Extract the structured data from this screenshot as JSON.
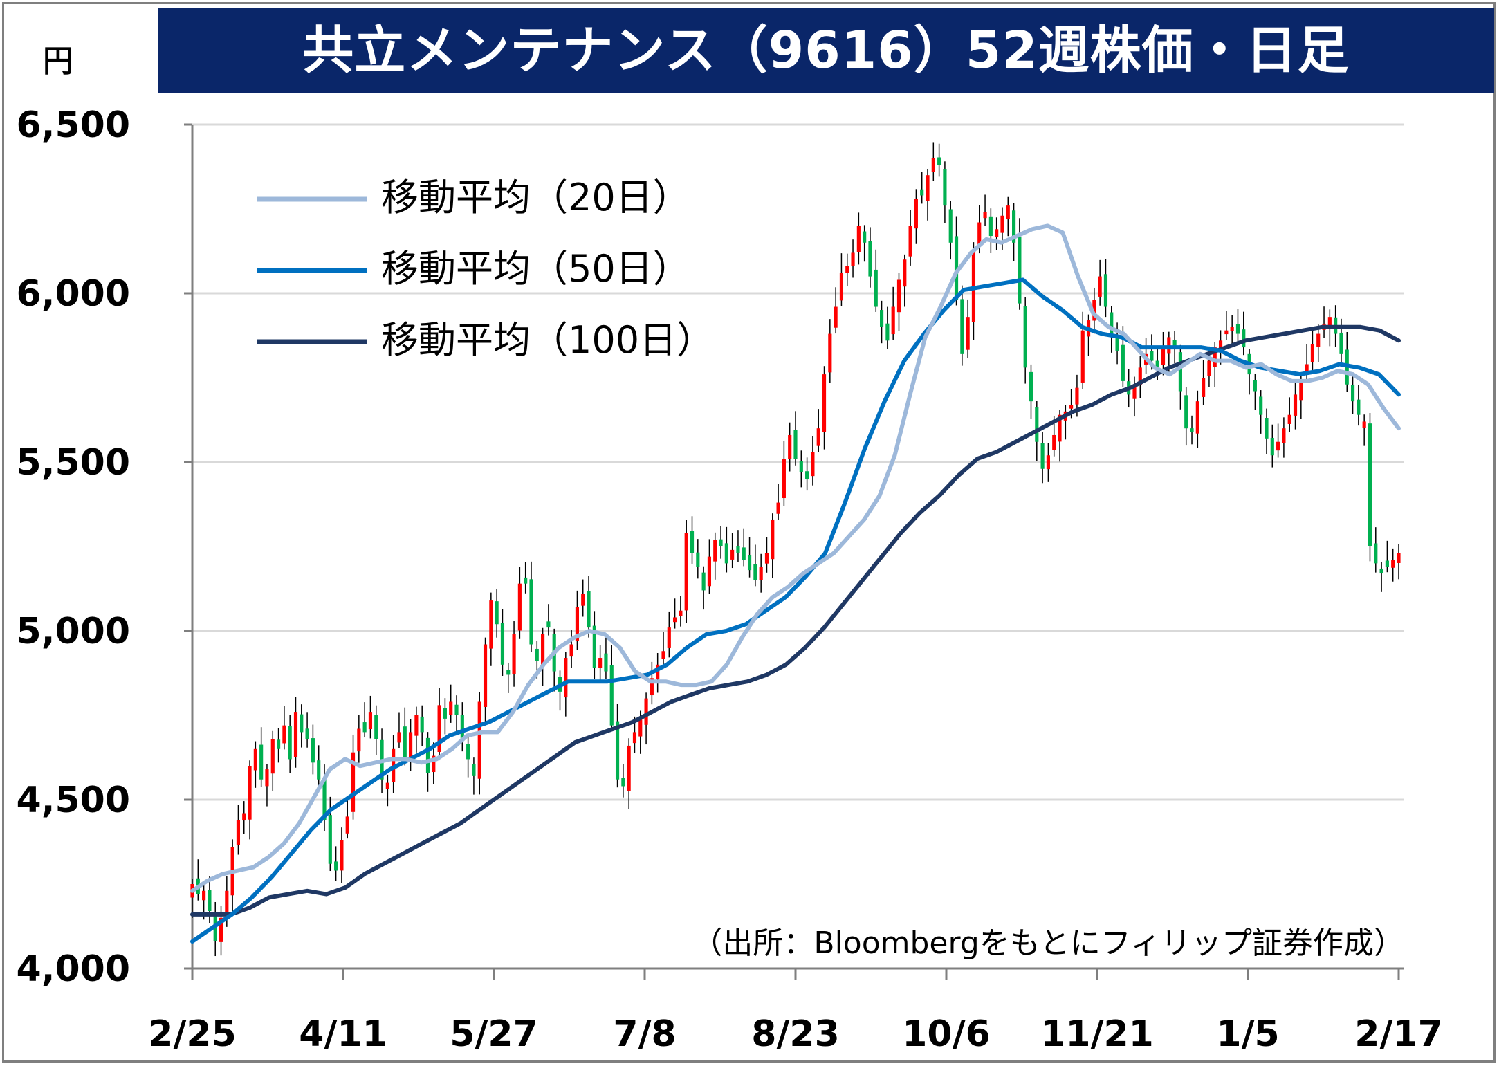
{
  "chart_data": {
    "type": "candlestick",
    "title": "共立メンテナンス（9616）52週株価・日足",
    "unit": "円",
    "ylim": [
      4000,
      6500
    ],
    "yticks": [
      4000,
      4500,
      5000,
      5500,
      6000,
      6500
    ],
    "ytick_labels": [
      "4,000",
      "4,500",
      "5,000",
      "5,500",
      "6,000",
      "6,500"
    ],
    "xtick_labels": [
      "2/25",
      "4/11",
      "5/27",
      "7/8",
      "8/23",
      "10/6",
      "11/21",
      "1/5",
      "2/17"
    ],
    "grid": true,
    "legend_position": "top-left",
    "source": "（出所：Bloombergをもとにフィリップ証券作成）",
    "colors": {
      "up": "#ff0000",
      "down": "#00b050",
      "ma20": "#9db8da",
      "ma50": "#0070c0",
      "ma100": "#1f3864",
      "title_bg": "#0a2669"
    },
    "series_names": [
      "移動平均（20日）",
      "移動平均（50日）",
      "移動平均（100日）"
    ],
    "candles_close": [
      4250,
      4220,
      4230,
      4170,
      4080,
      4150,
      4230,
      4360,
      4440,
      4460,
      4600,
      4650,
      4560,
      4590,
      4680,
      4650,
      4720,
      4620,
      4760,
      4700,
      4680,
      4610,
      4560,
      4440,
      4310,
      4290,
      4380,
      4450,
      4640,
      4710,
      4700,
      4760,
      4680,
      4560,
      4550,
      4650,
      4700,
      4620,
      4700,
      4750,
      4700,
      4580,
      4630,
      4780,
      4740,
      4790,
      4750,
      4680,
      4620,
      4570,
      4790,
      4960,
      5090,
      5020,
      4900,
      4870,
      4990,
      5140,
      5140,
      4960,
      4910,
      4990,
      5010,
      4880,
      4820,
      4920,
      4960,
      5070,
      5110,
      5010,
      4890,
      4920,
      4880,
      4720,
      4560,
      4540,
      4660,
      4700,
      4740,
      4800,
      4860,
      4900,
      4940,
      5010,
      5040,
      5060,
      5290,
      5230,
      5190,
      5120,
      5220,
      5270,
      5250,
      5200,
      5240,
      5230,
      5210,
      5180,
      5150,
      5190,
      5230,
      5330,
      5380,
      5510,
      5580,
      5510,
      5470,
      5450,
      5530,
      5600,
      5760,
      5880,
      5960,
      6060,
      6080,
      6120,
      6200,
      6150,
      6050,
      5960,
      5900,
      5860,
      5960,
      6040,
      6100,
      6200,
      6280,
      6290,
      6350,
      6400,
      6380,
      6260,
      6150,
      5980,
      5820,
      5930,
      6130,
      6210,
      6240,
      6170,
      6190,
      6230,
      6260,
      6150,
      5970,
      5780,
      5680,
      5560,
      5480,
      5520,
      5580,
      5640,
      5650,
      5670,
      5720,
      5890,
      5920,
      5980,
      6050,
      5960,
      5880,
      5830,
      5740,
      5700,
      5730,
      5780,
      5820,
      5800,
      5780,
      5840,
      5870,
      5840,
      5710,
      5600,
      5590,
      5680,
      5750,
      5800,
      5840,
      5860,
      5890,
      5900,
      5880,
      5840,
      5760,
      5710,
      5640,
      5570,
      5520,
      5560,
      5600,
      5640,
      5700,
      5740,
      5790,
      5850,
      5880,
      5910,
      5930,
      5880,
      5820,
      5730,
      5680,
      5640,
      5620,
      5250,
      5200,
      5170,
      5190,
      5210,
      5230
    ],
    "ma20_values": [
      4230,
      4260,
      4280,
      4290,
      4300,
      4330,
      4370,
      4430,
      4510,
      4590,
      4620,
      4600,
      4610,
      4620,
      4620,
      4610,
      4620,
      4650,
      4690,
      4700,
      4700,
      4760,
      4840,
      4900,
      4950,
      4980,
      5000,
      4990,
      4950,
      4880,
      4850,
      4850,
      4840,
      4840,
      4850,
      4900,
      4980,
      5050,
      5100,
      5130,
      5170,
      5200,
      5230,
      5280,
      5330,
      5400,
      5520,
      5700,
      5870,
      5960,
      6060,
      6120,
      6160,
      6150,
      6170,
      6190,
      6200,
      6180,
      6050,
      5940,
      5900,
      5880,
      5830,
      5780,
      5760,
      5790,
      5820,
      5800,
      5800,
      5780,
      5790,
      5760,
      5740,
      5740,
      5750,
      5770,
      5760,
      5730,
      5660,
      5600
    ],
    "ma50_values": [
      4080,
      4120,
      4160,
      4210,
      4270,
      4340,
      4410,
      4470,
      4510,
      4550,
      4590,
      4620,
      4650,
      4690,
      4710,
      4730,
      4760,
      4790,
      4820,
      4850,
      4850,
      4850,
      4860,
      4870,
      4900,
      4950,
      4990,
      5000,
      5020,
      5060,
      5100,
      5160,
      5230,
      5380,
      5540,
      5680,
      5800,
      5880,
      5950,
      6010,
      6020,
      6030,
      6040,
      5990,
      5950,
      5900,
      5880,
      5870,
      5840,
      5840,
      5840,
      5840,
      5830,
      5800,
      5780,
      5770,
      5760,
      5770,
      5790,
      5780,
      5760,
      5700
    ],
    "ma100_values": [
      4160,
      4160,
      4160,
      4180,
      4210,
      4220,
      4230,
      4220,
      4240,
      4280,
      4310,
      4340,
      4370,
      4400,
      4430,
      4470,
      4510,
      4550,
      4590,
      4630,
      4670,
      4690,
      4710,
      4730,
      4760,
      4790,
      4810,
      4830,
      4840,
      4850,
      4870,
      4900,
      4950,
      5010,
      5080,
      5150,
      5220,
      5290,
      5350,
      5400,
      5460,
      5510,
      5530,
      5560,
      5590,
      5620,
      5650,
      5670,
      5700,
      5720,
      5750,
      5780,
      5800,
      5820,
      5840,
      5860,
      5870,
      5880,
      5890,
      5900,
      5900,
      5900,
      5890,
      5860
    ]
  }
}
